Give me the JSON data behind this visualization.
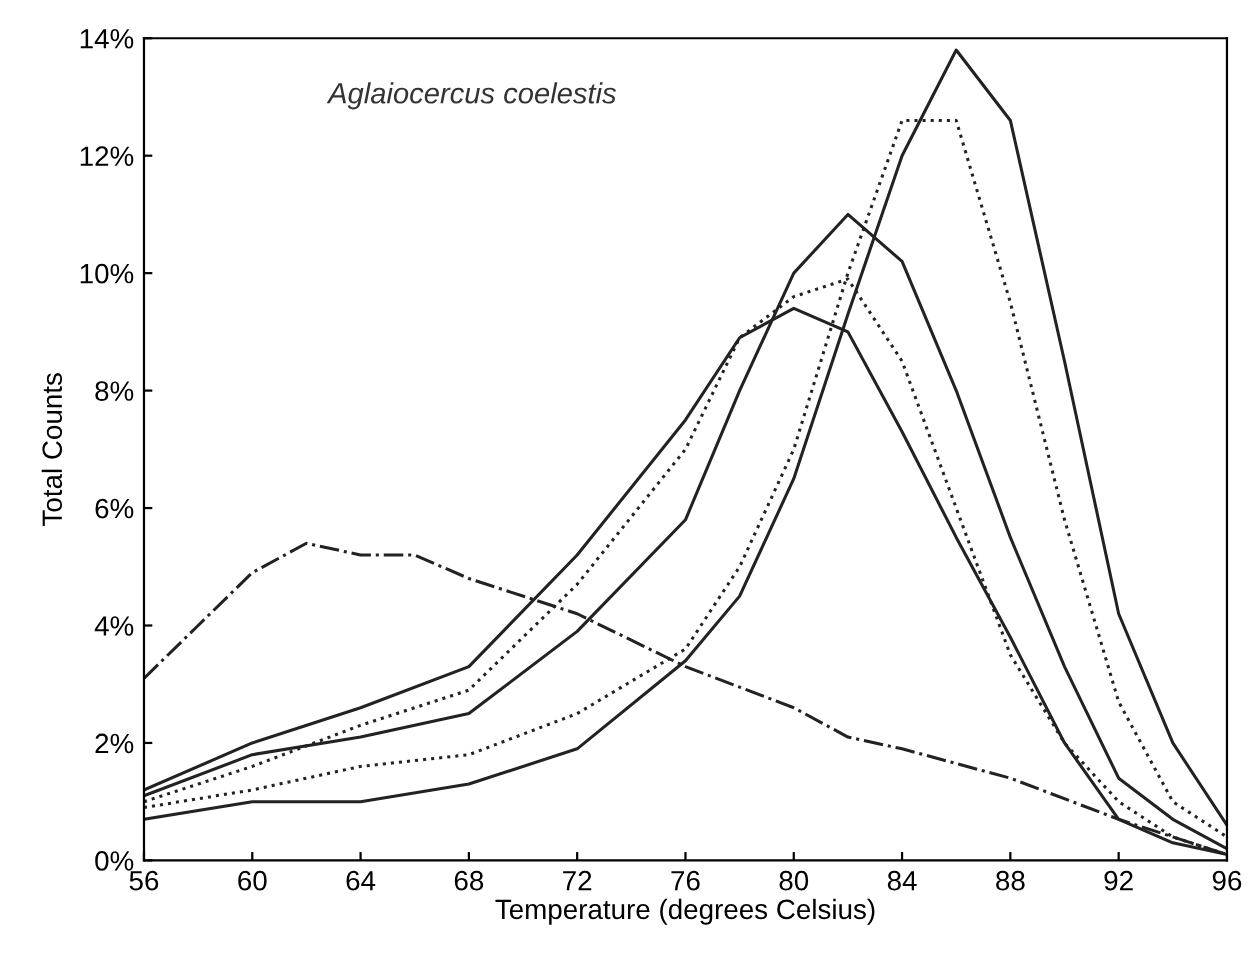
{
  "chart_data": {
    "type": "line",
    "xlabel": "Temperature (degrees Celsius)",
    "ylabel": "Total Counts",
    "annotations": [
      "Aglaiocercus coelestis"
    ],
    "xlim": [
      56,
      96
    ],
    "xticks": [
      56,
      60,
      64,
      68,
      72,
      76,
      80,
      84,
      88,
      92,
      96
    ],
    "ylim": [
      0,
      14
    ],
    "yticks": [
      {
        "value": 0,
        "label": "0%"
      },
      {
        "value": 2,
        "label": "2%"
      },
      {
        "value": 4,
        "label": "4%"
      },
      {
        "value": 6,
        "label": "6%"
      },
      {
        "value": 8,
        "label": "8%"
      },
      {
        "value": 10,
        "label": "10%"
      },
      {
        "value": 12,
        "label": "12%"
      },
      {
        "value": 14,
        "label": "14%"
      }
    ],
    "grid": false,
    "legend": false,
    "marker": "none",
    "series": [
      {
        "color": "#222222",
        "line_style": "solid",
        "x": [
          56,
          60,
          64,
          68,
          72,
          76,
          78,
          80,
          82,
          84,
          86,
          88,
          90,
          92,
          94,
          96
        ],
        "values": [
          1.2,
          2.0,
          2.6,
          3.3,
          5.2,
          7.5,
          8.9,
          9.4,
          9.0,
          7.3,
          5.5,
          3.8,
          2.0,
          0.7,
          0.3,
          0.1
        ]
      },
      {
        "color": "#222222",
        "line_style": "dotted",
        "x": [
          56,
          60,
          64,
          68,
          72,
          76,
          78,
          80,
          82,
          84,
          86,
          88,
          90,
          92,
          94,
          96
        ],
        "values": [
          1.0,
          1.6,
          2.3,
          2.9,
          4.7,
          7.0,
          8.9,
          9.6,
          9.9,
          8.5,
          6.0,
          3.5,
          2.0,
          1.0,
          0.4,
          0.1
        ]
      },
      {
        "color": "#222222",
        "line_style": "solid",
        "x": [
          56,
          60,
          64,
          68,
          72,
          76,
          78,
          80,
          82,
          84,
          86,
          88,
          90,
          92,
          94,
          96
        ],
        "values": [
          1.1,
          1.8,
          2.1,
          2.5,
          3.9,
          5.8,
          8.0,
          10.0,
          11.0,
          10.2,
          8.0,
          5.5,
          3.3,
          1.4,
          0.7,
          0.2
        ]
      },
      {
        "color": "#222222",
        "line_style": "dotted",
        "x": [
          56,
          60,
          64,
          68,
          72,
          76,
          78,
          80,
          82,
          84,
          86,
          88,
          90,
          92,
          94,
          96
        ],
        "values": [
          0.9,
          1.2,
          1.6,
          1.8,
          2.5,
          3.6,
          5.0,
          7.0,
          10.0,
          12.6,
          12.6,
          9.5,
          5.8,
          2.7,
          1.0,
          0.4
        ]
      },
      {
        "color": "#222222",
        "line_style": "solid",
        "x": [
          56,
          60,
          64,
          68,
          72,
          76,
          78,
          80,
          82,
          84,
          86,
          88,
          90,
          92,
          94,
          96
        ],
        "values": [
          0.7,
          1.0,
          1.0,
          1.3,
          1.9,
          3.4,
          4.5,
          6.5,
          9.3,
          12.0,
          13.8,
          12.6,
          8.5,
          4.2,
          2.0,
          0.6
        ]
      },
      {
        "color": "#222222",
        "line_style": "dashdot",
        "x": [
          56,
          58,
          60,
          62,
          64,
          66,
          68,
          72,
          76,
          80,
          82,
          84,
          88,
          92,
          96
        ],
        "values": [
          3.1,
          4.0,
          4.9,
          5.4,
          5.2,
          5.2,
          4.8,
          4.2,
          3.3,
          2.6,
          2.1,
          1.9,
          1.4,
          0.7,
          0.1
        ]
      }
    ]
  }
}
